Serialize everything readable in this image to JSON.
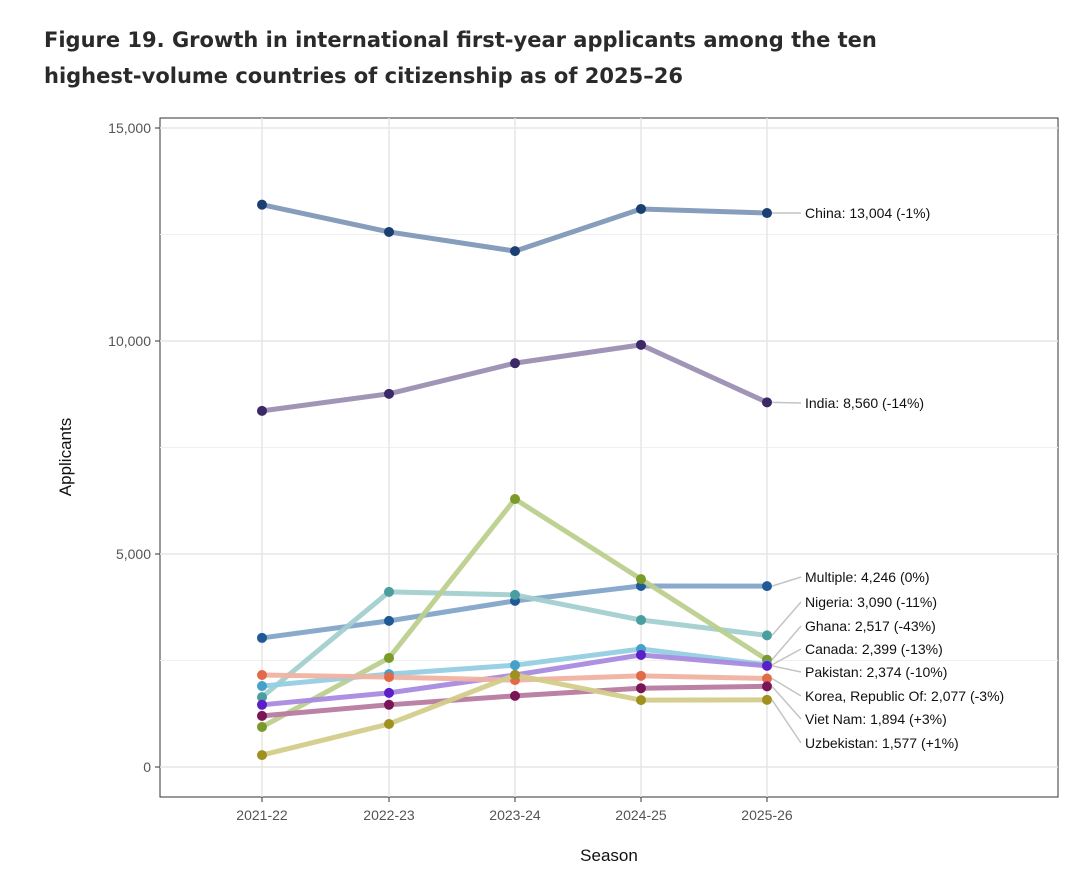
{
  "title_line1": "Figure 19. Growth in international first-year applicants among the ten",
  "title_line2": "highest-volume countries of citizenship as of 2025–26",
  "chart_data": {
    "type": "line",
    "title": "Figure 19. Growth in international first-year applicants among the ten highest-volume countries of citizenship as of 2025–26",
    "xlabel": "Season",
    "ylabel": "Applicants",
    "x": [
      "2021-22",
      "2022-23",
      "2023-24",
      "2024-25",
      "2025-26"
    ],
    "ylim": [
      0,
      15000
    ],
    "yticks": [
      0,
      5000,
      10000,
      15000
    ],
    "ytick_labels": [
      "0",
      "5,000",
      "10,000",
      "15,000"
    ],
    "grid": true,
    "series": [
      {
        "name": "China",
        "label": "China: 13,004 (-1%)",
        "point": "#1b3f73",
        "line": "#7f98b8",
        "values": [
          13200,
          12560,
          12110,
          13100,
          13004
        ]
      },
      {
        "name": "India",
        "label": "India: 8,560 (-14%)",
        "point": "#3b2866",
        "line": "#9c8fb3",
        "values": [
          8360,
          8760,
          9480,
          9910,
          8560
        ]
      },
      {
        "name": "Multiple",
        "label": "Multiple: 4,246 (0%)",
        "point": "#1f5a96",
        "line": "#84a5c8",
        "values": [
          3030,
          3430,
          3900,
          4250,
          4246
        ]
      },
      {
        "name": "Nigeria",
        "label": "Nigeria: 3,090 (-11%)",
        "point": "#4a9ea0",
        "line": "#a3cfd0",
        "values": [
          1640,
          4110,
          4040,
          3450,
          3090
        ]
      },
      {
        "name": "Ghana",
        "label": "Ghana: 2,517 (-43%)",
        "point": "#7a9a2a",
        "line": "#bdcf8e",
        "values": [
          940,
          2560,
          6290,
          4410,
          2517
        ]
      },
      {
        "name": "Canada",
        "label": "Canada: 2,399 (-13%)",
        "point": "#45a0cc",
        "line": "#95cde3",
        "values": [
          1900,
          2180,
          2390,
          2770,
          2399
        ]
      },
      {
        "name": "Pakistan",
        "label": "Pakistan: 2,374 (-10%)",
        "point": "#5b1fc8",
        "line": "#a98ae0",
        "values": [
          1460,
          1740,
          2160,
          2630,
          2374
        ]
      },
      {
        "name": "Korea, Republic Of",
        "label": "Korea, Republic Of: 2,077 (-3%)",
        "point": "#e06a4a",
        "line": "#efb3a2",
        "values": [
          2160,
          2110,
          2040,
          2140,
          2077
        ]
      },
      {
        "name": "Viet Nam",
        "label": "Viet Nam: 1,894 (+3%)",
        "point": "#7a1457",
        "line": "#b77ba1",
        "values": [
          1200,
          1460,
          1670,
          1850,
          1894
        ]
      },
      {
        "name": "Uzbekistan",
        "label": "Uzbekistan: 1,577 (+1%)",
        "point": "#a09020",
        "line": "#d3cc8a",
        "values": [
          280,
          1010,
          2160,
          1570,
          1577
        ]
      }
    ]
  }
}
